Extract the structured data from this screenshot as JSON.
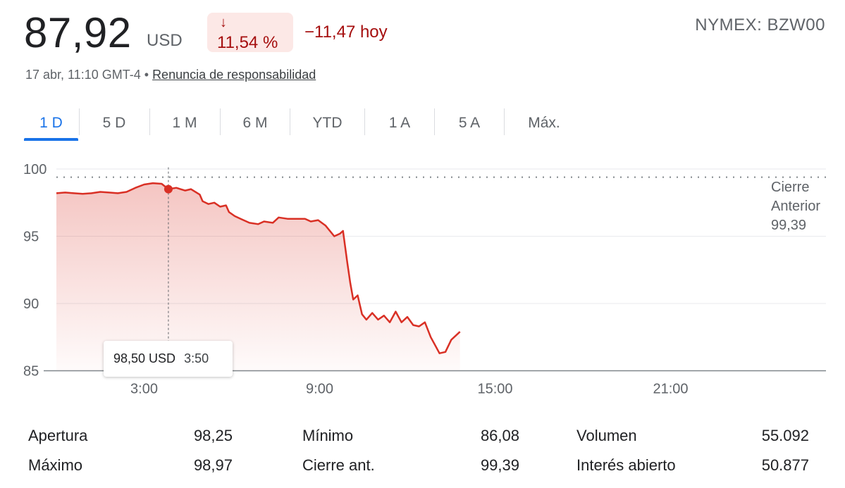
{
  "header": {
    "price": "87,92",
    "currency": "USD",
    "change_arrow": "↓",
    "change_pct": "11,54 %",
    "change_abs": "−11,47 hoy",
    "ticker": "NYMEX: BZW00",
    "timestamp": "17 abr, 11:10 GMT-4 • ",
    "disclaimer": "Renuncia de responsabilidad",
    "colors": {
      "down": "#a50e0e",
      "down_bg": "#fce8e6",
      "accent": "#1a73e8"
    }
  },
  "tabs": [
    {
      "label": "1 D",
      "active": true
    },
    {
      "label": "5 D"
    },
    {
      "label": "1 M"
    },
    {
      "label": "6 M"
    },
    {
      "label": "YTD"
    },
    {
      "label": "1 A"
    },
    {
      "label": "5 A"
    },
    {
      "label": "Máx."
    }
  ],
  "tooltip": {
    "price": "98,50 USD",
    "time": "3:50"
  },
  "chart_data": {
    "type": "area",
    "x_unit": "hours",
    "xlim": [
      0,
      24
    ],
    "ylim": [
      85,
      100
    ],
    "yticks": [
      {
        "value": 85,
        "label": "85"
      },
      {
        "value": 90,
        "label": "90"
      },
      {
        "value": 95,
        "label": "95"
      },
      {
        "value": 100,
        "label": "100"
      }
    ],
    "xticks": [
      {
        "value": 3,
        "label": "3:00"
      },
      {
        "value": 9,
        "label": "9:00"
      },
      {
        "value": 15,
        "label": "15:00"
      },
      {
        "value": 21,
        "label": "21:00"
      }
    ],
    "previous_close": {
      "value": 99.39,
      "label_line1": "Cierre",
      "label_line2": "Anterior",
      "value_label": "99,39"
    },
    "hover": {
      "x": 3.83,
      "y": 98.5
    },
    "line_color": "#d93025",
    "points": [
      [
        0.0,
        98.2
      ],
      [
        0.3,
        98.25
      ],
      [
        0.6,
        98.2
      ],
      [
        0.9,
        98.15
      ],
      [
        1.2,
        98.2
      ],
      [
        1.5,
        98.3
      ],
      [
        1.8,
        98.25
      ],
      [
        2.1,
        98.2
      ],
      [
        2.4,
        98.3
      ],
      [
        2.7,
        98.6
      ],
      [
        3.0,
        98.85
      ],
      [
        3.3,
        98.95
      ],
      [
        3.6,
        98.9
      ],
      [
        3.83,
        98.5
      ],
      [
        4.1,
        98.6
      ],
      [
        4.4,
        98.4
      ],
      [
        4.6,
        98.5
      ],
      [
        4.9,
        98.1
      ],
      [
        5.0,
        97.6
      ],
      [
        5.2,
        97.4
      ],
      [
        5.4,
        97.5
      ],
      [
        5.6,
        97.2
      ],
      [
        5.8,
        97.3
      ],
      [
        5.9,
        96.8
      ],
      [
        6.1,
        96.5
      ],
      [
        6.3,
        96.3
      ],
      [
        6.6,
        96.0
      ],
      [
        6.9,
        95.9
      ],
      [
        7.1,
        96.1
      ],
      [
        7.4,
        96.0
      ],
      [
        7.6,
        96.4
      ],
      [
        7.9,
        96.3
      ],
      [
        8.2,
        96.3
      ],
      [
        8.5,
        96.3
      ],
      [
        8.7,
        96.1
      ],
      [
        8.95,
        96.2
      ],
      [
        9.2,
        95.8
      ],
      [
        9.5,
        95.0
      ],
      [
        9.7,
        95.2
      ],
      [
        9.8,
        95.4
      ],
      [
        9.95,
        93.0
      ],
      [
        10.05,
        91.5
      ],
      [
        10.15,
        90.3
      ],
      [
        10.3,
        90.6
      ],
      [
        10.45,
        89.2
      ],
      [
        10.6,
        88.8
      ],
      [
        10.8,
        89.3
      ],
      [
        11.0,
        88.8
      ],
      [
        11.2,
        89.1
      ],
      [
        11.4,
        88.6
      ],
      [
        11.6,
        89.4
      ],
      [
        11.8,
        88.6
      ],
      [
        12.0,
        89.0
      ],
      [
        12.2,
        88.4
      ],
      [
        12.4,
        88.3
      ],
      [
        12.6,
        88.6
      ],
      [
        12.8,
        87.5
      ],
      [
        12.95,
        86.9
      ],
      [
        13.1,
        86.3
      ],
      [
        13.3,
        86.4
      ],
      [
        13.5,
        87.3
      ],
      [
        13.8,
        87.9
      ]
    ]
  },
  "stats": [
    {
      "label": "Apertura",
      "value": "98,25"
    },
    {
      "label": "Máximo",
      "value": "98,97"
    },
    {
      "label": "Mínimo",
      "value": "86,08"
    },
    {
      "label": "Cierre ant.",
      "value": "99,39"
    },
    {
      "label": "Volumen",
      "value": "55.092"
    },
    {
      "label": "Interés abierto",
      "value": "50.877"
    }
  ]
}
